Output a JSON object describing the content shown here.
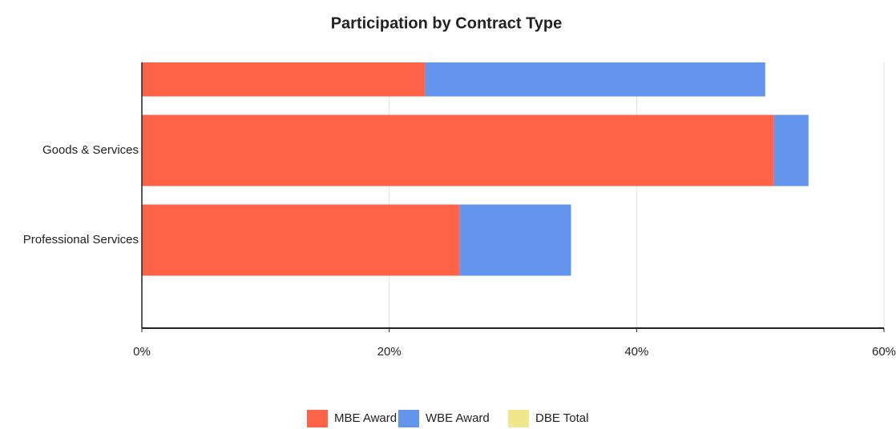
{
  "chart_data": {
    "type": "bar",
    "orientation": "horizontal",
    "stacked": true,
    "title": "Participation by Contract Type",
    "categories": [
      null,
      "Goods & Services",
      "Professional Services"
    ],
    "series": [
      {
        "name": "MBE Award",
        "color": "#ff6347",
        "values": [
          22.9,
          51.1,
          25.7
        ]
      },
      {
        "name": "WBE Award",
        "color": "#6495ed",
        "values": [
          27.5,
          2.8,
          9.0
        ]
      },
      {
        "name": "DBE Total",
        "color": "#f0e68c",
        "values": [
          0,
          0,
          0
        ]
      }
    ],
    "xlim": [
      0,
      60
    ],
    "xticks": [
      {
        "value": 0,
        "label": "0%"
      },
      {
        "value": 20,
        "label": "20%"
      },
      {
        "value": 40,
        "label": "40%"
      },
      {
        "value": 60,
        "label": "60%"
      }
    ],
    "grid": true,
    "legend": "bottom"
  }
}
